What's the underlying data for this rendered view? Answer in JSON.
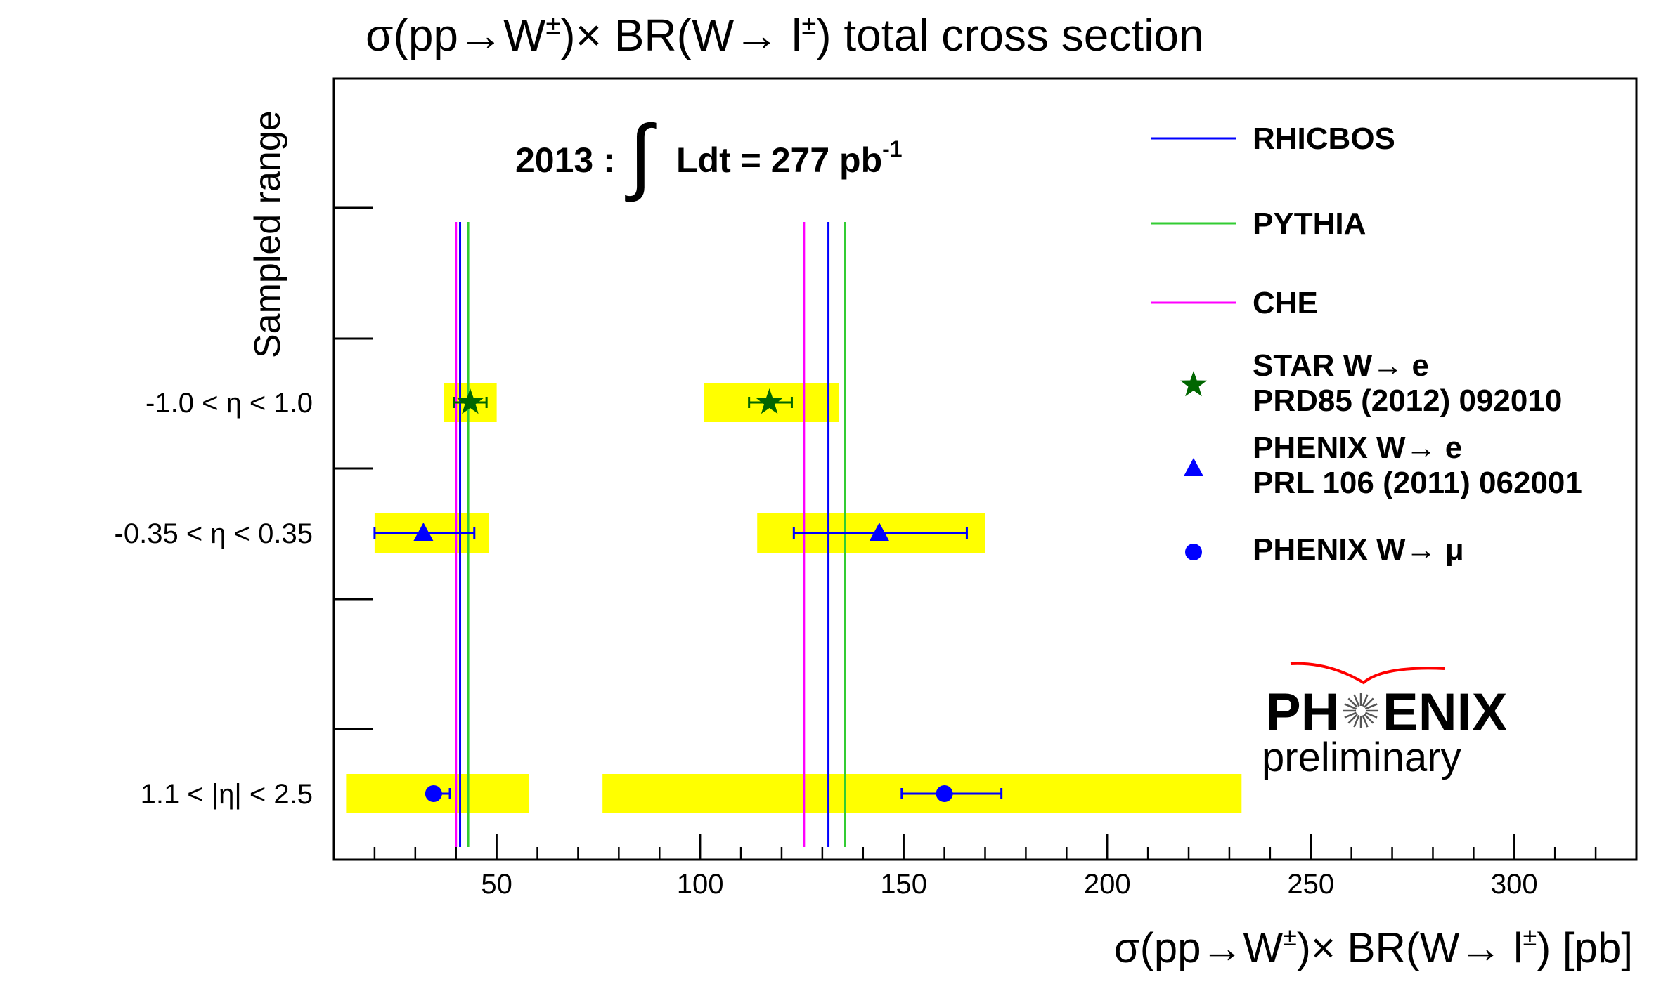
{
  "chart_data": {
    "type": "scatter",
    "title": "σ(pp→W±)× BR(W→ l±) total cross section",
    "xlabel": "σ(pp→W±)× BR(W→ l±) [pb]",
    "ylabel": "Sampled range",
    "xlim": [
      10,
      330
    ],
    "x_ticks": [
      50,
      100,
      150,
      200,
      250,
      300
    ],
    "categories": [
      "-1.0 < η < 1.0",
      "-0.35 < η < 0.35",
      "1.1 < |η| < 2.5"
    ],
    "annotation": {
      "prefix": "2013 :",
      "integral": "∫",
      "body": "Ldt =  277 pb",
      "superscript": "-1"
    },
    "theory_lines": [
      {
        "name": "RHICBOS",
        "color": "#0000ff",
        "x": [
          41,
          131.5
        ]
      },
      {
        "name": "PYTHIA",
        "color": "#33cc33",
        "x": [
          43,
          135.5
        ]
      },
      {
        "name": "CHE",
        "color": "#ff00ff",
        "x": [
          40,
          125.5
        ]
      }
    ],
    "series": [
      {
        "name": "STAR W→ e",
        "reference": "PRD85 (2012) 092010",
        "marker": "star",
        "color": "#006600",
        "category": 0,
        "points": [
          {
            "x": 43.5,
            "stat": [
              39.5,
              47.5
            ],
            "syst": [
              37,
              50
            ]
          },
          {
            "x": 117,
            "stat": [
              112,
              122.5
            ],
            "syst": [
              101,
              134
            ]
          }
        ]
      },
      {
        "name": "PHENIX W→ e",
        "reference": "PRL 106 (2011) 062001",
        "marker": "triangle",
        "color": "#0000ff",
        "category": 1,
        "points": [
          {
            "x": 32,
            "stat": [
              20,
              44.5
            ],
            "syst": [
              20,
              48
            ]
          },
          {
            "x": 144,
            "stat": [
              123,
              165.5
            ],
            "syst": [
              114,
              170
            ]
          }
        ]
      },
      {
        "name": "PHENIX W→ μ",
        "reference": "",
        "marker": "circle",
        "color": "#0000ff",
        "category": 2,
        "points": [
          {
            "x": 34.5,
            "stat": [
              34.5,
              38.5
            ],
            "syst": [
              13,
              58
            ]
          },
          {
            "x": 160,
            "stat": [
              149.5,
              174
            ],
            "syst": [
              76,
              233
            ]
          }
        ]
      }
    ],
    "syst_band_color": "#ffff00",
    "legend_position": "top-right"
  },
  "logo": {
    "text_left": "PH",
    "text_right": "ENIX",
    "subtitle": "preliminary",
    "accent_color": "#ff0000"
  }
}
